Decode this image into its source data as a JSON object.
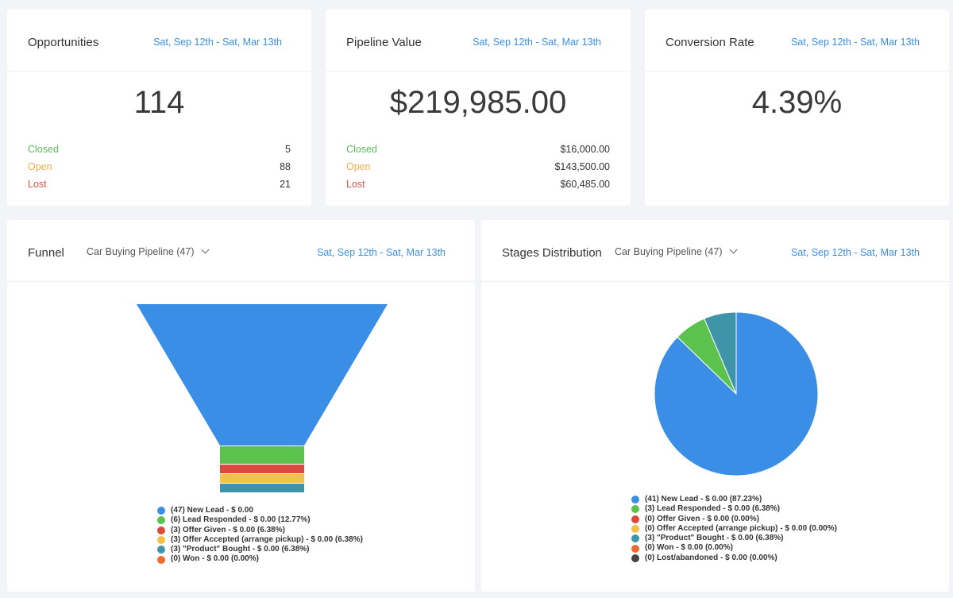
{
  "opportunities": {
    "title": "Opportunities",
    "date_range": "Sat, Sep 12th - Sat, Mar 13th",
    "total": "114",
    "rows": [
      {
        "label": "Closed",
        "value": "5"
      },
      {
        "label": "Open",
        "value": "88"
      },
      {
        "label": "Lost",
        "value": "21"
      }
    ]
  },
  "pipeline_value": {
    "title": "Pipeline Value",
    "date_range": "Sat, Sep 12th - Sat, Mar 13th",
    "total": "$219,985.00",
    "rows": [
      {
        "label": "Closed",
        "value": "$16,000.00"
      },
      {
        "label": "Open",
        "value": "$143,500.00"
      },
      {
        "label": "Lost",
        "value": "$60,485.00"
      }
    ]
  },
  "conversion_rate": {
    "title": "Conversion Rate",
    "date_range": "Sat, Sep 12th - Sat, Mar 13th",
    "total": "4.39%"
  },
  "funnel": {
    "title": "Funnel",
    "pipeline": "Car Buying Pipeline (47)",
    "date_range": "Sat, Sep 12th - Sat, Mar 13th",
    "legend": [
      {
        "text": "(47) New Lead - $ 0.00",
        "color": "#3a8ee6"
      },
      {
        "text": "(6) Lead Responded - $ 0.00 (12.77%)",
        "color": "#5bc24d"
      },
      {
        "text": "(3) Offer Given - $ 0.00 (6.38%)",
        "color": "#d94b3d"
      },
      {
        "text": "(3) Offer Accepted (arrange pickup) - $ 0.00 (6.38%)",
        "color": "#f5c043"
      },
      {
        "text": "(3) \"Product\" Bought - $ 0.00 (6.38%)",
        "color": "#3e94a8"
      },
      {
        "text": "(0) Won - $ 0.00 (0.00%)",
        "color": "#ee6a2e"
      }
    ]
  },
  "stages": {
    "title": "Stages Distribution",
    "pipeline": "Car Buying Pipeline (47)",
    "date_range": "Sat, Sep 12th - Sat, Mar 13th",
    "legend": [
      {
        "text": "(41) New Lead - $ 0.00 (87.23%)",
        "color": "#3a8ee6"
      },
      {
        "text": "(3) Lead Responded - $ 0.00 (6.38%)",
        "color": "#5bc24d"
      },
      {
        "text": "(0) Offer Given - $ 0.00 (0.00%)",
        "color": "#d94b3d"
      },
      {
        "text": "(0) Offer Accepted (arrange pickup) - $ 0.00 (0.00%)",
        "color": "#f5c043"
      },
      {
        "text": "(3) \"Product\" Bought - $ 0.00 (6.38%)",
        "color": "#3e94a8"
      },
      {
        "text": "(0) Won - $ 0.00 (0.00%)",
        "color": "#ee6a2e"
      },
      {
        "text": "(0) Lost/abandoned - $ 0.00 (0.00%)",
        "color": "#444444"
      }
    ]
  },
  "chart_data": [
    {
      "type": "funnel",
      "categories": [
        "New Lead",
        "Lead Responded",
        "Offer Given",
        "Offer Accepted (arrange pickup)",
        "\"Product\" Bought",
        "Won"
      ],
      "values": [
        47,
        6,
        3,
        3,
        3,
        0
      ],
      "colors": [
        "#3a8ee6",
        "#5bc24d",
        "#d94b3d",
        "#f5c043",
        "#3e94a8",
        "#ee6a2e"
      ]
    },
    {
      "type": "pie",
      "categories": [
        "New Lead",
        "Lead Responded",
        "Offer Given",
        "Offer Accepted (arrange pickup)",
        "\"Product\" Bought",
        "Won",
        "Lost/abandoned"
      ],
      "values": [
        41,
        3,
        0,
        0,
        3,
        0,
        0
      ],
      "colors": [
        "#3a8ee6",
        "#5bc24d",
        "#d94b3d",
        "#f5c043",
        "#3e94a8",
        "#ee6a2e",
        "#444444"
      ]
    }
  ]
}
